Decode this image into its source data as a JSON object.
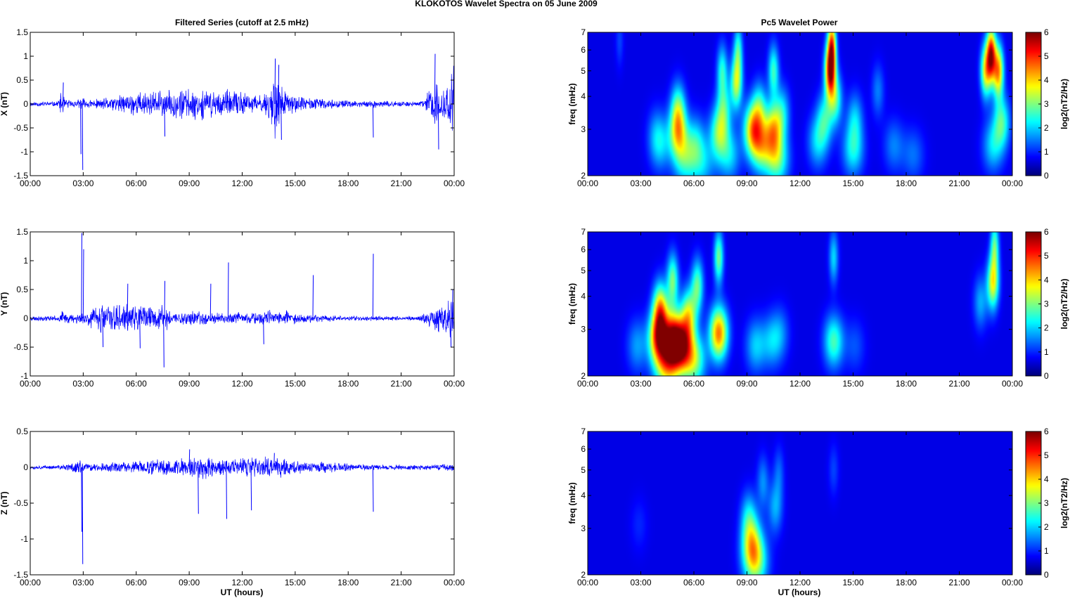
{
  "figure": {
    "title": "KLOKOTOS Wavelet Spectra on 05 June      2009",
    "left_column_title": "Filtered Series (cutoff at 2.5 mHz)",
    "right_column_title": "Pc5 Wavelet Power",
    "xlabel": "UT (hours)"
  },
  "chart_data": [
    {
      "type": "line",
      "component": "X",
      "ylabel": "X (nT)",
      "ylim": [
        -1.5,
        1.5
      ],
      "yticks": [
        "-1.5",
        "-1",
        "-0.5",
        "0",
        "0.5",
        "1",
        "1.5"
      ],
      "xlim": [
        0,
        24
      ],
      "xticks": [
        "00:00",
        "03:00",
        "06:00",
        "09:00",
        "12:00",
        "15:00",
        "18:00",
        "21:00",
        "00:00"
      ],
      "series_color": "#0000ff",
      "envelope": {
        "x": [
          0,
          1.5,
          1.8,
          2,
          2.5,
          2.8,
          2.9,
          3,
          3.5,
          4,
          5,
          6,
          7,
          8,
          8.5,
          9,
          10,
          11,
          12,
          12.5,
          13,
          13.5,
          13.8,
          14,
          14.3,
          14.6,
          15,
          16,
          17,
          18,
          19,
          19.4,
          20,
          21,
          22,
          22.3,
          22.6,
          23,
          23.3,
          23.6,
          24
        ],
        "amp": [
          0.06,
          0.06,
          0.3,
          0.12,
          0.08,
          0.12,
          0.2,
          0.14,
          0.1,
          0.12,
          0.2,
          0.3,
          0.3,
          0.32,
          0.4,
          0.35,
          0.35,
          0.32,
          0.3,
          0.25,
          0.2,
          0.35,
          0.9,
          0.6,
          0.4,
          0.25,
          0.2,
          0.15,
          0.1,
          0.08,
          0.07,
          0.1,
          0.07,
          0.06,
          0.06,
          0.1,
          0.4,
          0.6,
          0.3,
          0.5,
          0.8
        ]
      },
      "spikes": [
        {
          "x": 1.85,
          "y": 0.45
        },
        {
          "x": 2.85,
          "y": -1.05
        },
        {
          "x": 2.95,
          "y": -1.38
        },
        {
          "x": 7.6,
          "y": -0.68
        },
        {
          "x": 13.85,
          "y": 0.95
        },
        {
          "x": 14.05,
          "y": 0.82
        },
        {
          "x": 14.2,
          "y": -0.75
        },
        {
          "x": 19.4,
          "y": -0.7
        },
        {
          "x": 22.9,
          "y": 1.05
        },
        {
          "x": 23.1,
          "y": -0.95
        },
        {
          "x": 23.95,
          "y": 0.8
        }
      ],
      "seed": 11
    },
    {
      "type": "line",
      "component": "Y",
      "ylabel": "Y (nT)",
      "ylim": [
        -1,
        1.5
      ],
      "yticks": [
        "-1",
        "-0.5",
        "0",
        "0.5",
        "1",
        "1.5"
      ],
      "xlim": [
        0,
        24
      ],
      "xticks": [
        "00:00",
        "03:00",
        "06:00",
        "09:00",
        "12:00",
        "15:00",
        "18:00",
        "21:00",
        "00:00"
      ],
      "series_color": "#0000ff",
      "envelope": {
        "x": [
          0,
          1.5,
          1.8,
          2,
          2.5,
          2.8,
          3,
          3.5,
          4,
          4.5,
          5,
          6,
          7,
          7.5,
          8,
          9,
          10,
          11,
          11.5,
          12,
          13,
          14,
          14.5,
          15,
          16,
          17,
          18,
          19,
          20,
          21,
          22,
          22.5,
          23,
          23.5,
          24
        ],
        "amp": [
          0.05,
          0.05,
          0.15,
          0.1,
          0.08,
          0.15,
          0.12,
          0.2,
          0.3,
          0.3,
          0.28,
          0.25,
          0.22,
          0.3,
          0.15,
          0.15,
          0.12,
          0.1,
          0.15,
          0.1,
          0.12,
          0.2,
          0.15,
          0.1,
          0.08,
          0.06,
          0.05,
          0.05,
          0.05,
          0.04,
          0.05,
          0.15,
          0.25,
          0.3,
          0.4
        ]
      },
      "spikes": [
        {
          "x": 2.9,
          "y": 1.48
        },
        {
          "x": 3.0,
          "y": 1.2
        },
        {
          "x": 4.1,
          "y": -0.5
        },
        {
          "x": 5.5,
          "y": 0.6
        },
        {
          "x": 6.2,
          "y": -0.52
        },
        {
          "x": 7.55,
          "y": -0.85
        },
        {
          "x": 7.6,
          "y": 0.65
        },
        {
          "x": 11.2,
          "y": 0.97
        },
        {
          "x": 10.2,
          "y": 0.6
        },
        {
          "x": 13.2,
          "y": -0.45
        },
        {
          "x": 16.0,
          "y": 0.75
        },
        {
          "x": 19.4,
          "y": 1.12
        },
        {
          "x": 23.8,
          "y": -0.5
        },
        {
          "x": 23.9,
          "y": 0.5
        }
      ],
      "seed": 23
    },
    {
      "type": "line",
      "component": "Z",
      "ylabel": "Z (nT)",
      "ylim": [
        -1.5,
        0.5
      ],
      "yticks": [
        "-1.5",
        "-1",
        "-0.5",
        "0",
        "0.5"
      ],
      "xlim": [
        0,
        24
      ],
      "xticks": [
        "00:00",
        "03:00",
        "06:00",
        "09:00",
        "12:00",
        "15:00",
        "18:00",
        "21:00",
        "00:00"
      ],
      "series_color": "#0000ff",
      "envelope": {
        "x": [
          0,
          1.5,
          2,
          2.8,
          3,
          3.5,
          5,
          6,
          7,
          8,
          9,
          9.5,
          10,
          11,
          12,
          13,
          13.5,
          14,
          15,
          16,
          17,
          18,
          19,
          20,
          21,
          22,
          23,
          24
        ],
        "amp": [
          0.03,
          0.03,
          0.05,
          0.12,
          0.08,
          0.06,
          0.08,
          0.1,
          0.12,
          0.14,
          0.16,
          0.2,
          0.18,
          0.15,
          0.15,
          0.16,
          0.18,
          0.18,
          0.12,
          0.1,
          0.08,
          0.06,
          0.05,
          0.04,
          0.04,
          0.04,
          0.05,
          0.06
        ]
      },
      "spikes": [
        {
          "x": 2.95,
          "y": -1.35
        },
        {
          "x": 2.9,
          "y": -0.9
        },
        {
          "x": 9.5,
          "y": -0.65
        },
        {
          "x": 11.1,
          "y": -0.72
        },
        {
          "x": 12.5,
          "y": -0.6
        },
        {
          "x": 19.4,
          "y": -0.62
        },
        {
          "x": 9.0,
          "y": 0.25
        },
        {
          "x": 13.8,
          "y": 0.2
        }
      ],
      "seed": 37
    },
    {
      "type": "heatmap",
      "component": "X",
      "ylabel": "freq (mHz)",
      "yscale": "log",
      "ylim": [
        2,
        7
      ],
      "yticks": [
        "2",
        "3",
        "4",
        "5",
        "6",
        "7"
      ],
      "xlim": [
        0,
        24
      ],
      "xticks": [
        "00:00",
        "03:00",
        "06:00",
        "09:00",
        "12:00",
        "15:00",
        "18:00",
        "21:00",
        "00:00"
      ],
      "colorbar": {
        "label": "log2(nT2/Hz)",
        "ticks": [
          "0",
          "1",
          "2",
          "3",
          "4",
          "5",
          "6"
        ],
        "range": [
          0,
          6
        ],
        "colormap": "jet"
      },
      "blobs": [
        {
          "t": 4.1,
          "f": 2.6,
          "v": 1.2
        },
        {
          "t": 5.1,
          "f": 2.9,
          "v": 3.0
        },
        {
          "t": 5.1,
          "f": 3.6,
          "v": 2.2
        },
        {
          "t": 5.5,
          "f": 2.3,
          "v": 1.8
        },
        {
          "t": 6.1,
          "f": 2.7,
          "v": 1.5
        },
        {
          "t": 6.5,
          "f": 2.2,
          "v": 1.3
        },
        {
          "t": 7.4,
          "f": 2.9,
          "v": 2.4
        },
        {
          "t": 7.7,
          "f": 3.6,
          "v": 1.8
        },
        {
          "t": 7.6,
          "f": 5.0,
          "v": 2.0
        },
        {
          "t": 8.0,
          "f": 2.4,
          "v": 1.6
        },
        {
          "t": 8.4,
          "f": 4.5,
          "v": 3.0
        },
        {
          "t": 8.5,
          "f": 6.0,
          "v": 2.0
        },
        {
          "t": 9.3,
          "f": 3.0,
          "v": 3.4
        },
        {
          "t": 9.8,
          "f": 2.6,
          "v": 2.8
        },
        {
          "t": 9.7,
          "f": 3.6,
          "v": 2.0
        },
        {
          "t": 10.5,
          "f": 3.0,
          "v": 3.2
        },
        {
          "t": 10.7,
          "f": 2.3,
          "v": 2.4
        },
        {
          "t": 10.5,
          "f": 5.0,
          "v": 2.2
        },
        {
          "t": 11.0,
          "f": 3.5,
          "v": 1.5
        },
        {
          "t": 13.0,
          "f": 2.7,
          "v": 1.6
        },
        {
          "t": 13.4,
          "f": 3.3,
          "v": 1.8
        },
        {
          "t": 13.7,
          "f": 5.0,
          "v": 5.2
        },
        {
          "t": 13.8,
          "f": 6.3,
          "v": 4.0
        },
        {
          "t": 14.0,
          "f": 3.9,
          "v": 2.2
        },
        {
          "t": 15.0,
          "f": 2.5,
          "v": 1.8
        },
        {
          "t": 15.1,
          "f": 3.3,
          "v": 1.4
        },
        {
          "t": 16.4,
          "f": 4.2,
          "v": 1.0
        },
        {
          "t": 17.3,
          "f": 2.6,
          "v": 1.0
        },
        {
          "t": 18.4,
          "f": 2.4,
          "v": 0.9
        },
        {
          "t": 22.5,
          "f": 5.0,
          "v": 3.4
        },
        {
          "t": 22.8,
          "f": 5.8,
          "v": 5.0
        },
        {
          "t": 23.2,
          "f": 5.0,
          "v": 4.2
        },
        {
          "t": 23.4,
          "f": 3.2,
          "v": 2.2
        },
        {
          "t": 22.9,
          "f": 2.6,
          "v": 1.6
        },
        {
          "t": 1.8,
          "f": 6.5,
          "v": 0.6
        },
        {
          "t": 3.9,
          "f": 2.9,
          "v": 0.9
        }
      ]
    },
    {
      "type": "heatmap",
      "component": "Y",
      "ylabel": "freq (mHz)",
      "yscale": "log",
      "ylim": [
        2,
        7
      ],
      "yticks": [
        "2",
        "3",
        "4",
        "5",
        "6",
        "7"
      ],
      "xlim": [
        0,
        24
      ],
      "xticks": [
        "00:00",
        "03:00",
        "06:00",
        "09:00",
        "12:00",
        "15:00",
        "18:00",
        "21:00",
        "00:00"
      ],
      "colorbar": {
        "label": "log2(nT2/Hz)",
        "ticks": [
          "0",
          "1",
          "2",
          "3",
          "4",
          "5",
          "6"
        ],
        "range": [
          0,
          6
        ],
        "colormap": "jet"
      },
      "blobs": [
        {
          "t": 2.8,
          "f": 2.6,
          "v": 1.2
        },
        {
          "t": 4.0,
          "f": 2.8,
          "v": 4.6
        },
        {
          "t": 4.1,
          "f": 3.6,
          "v": 3.5
        },
        {
          "t": 4.5,
          "f": 2.2,
          "v": 3.4
        },
        {
          "t": 4.8,
          "f": 2.8,
          "v": 4.2
        },
        {
          "t": 4.8,
          "f": 4.6,
          "v": 2.6
        },
        {
          "t": 5.3,
          "f": 2.6,
          "v": 4.4
        },
        {
          "t": 5.7,
          "f": 3.4,
          "v": 3.0
        },
        {
          "t": 6.0,
          "f": 2.3,
          "v": 2.8
        },
        {
          "t": 6.2,
          "f": 4.4,
          "v": 2.4
        },
        {
          "t": 7.4,
          "f": 2.9,
          "v": 4.4
        },
        {
          "t": 7.4,
          "f": 5.6,
          "v": 2.6
        },
        {
          "t": 9.5,
          "f": 2.6,
          "v": 1.5
        },
        {
          "t": 10.4,
          "f": 2.7,
          "v": 1.3
        },
        {
          "t": 10.9,
          "f": 2.9,
          "v": 0.9
        },
        {
          "t": 13.9,
          "f": 2.7,
          "v": 2.3
        },
        {
          "t": 13.9,
          "f": 5.6,
          "v": 1.6
        },
        {
          "t": 15.1,
          "f": 2.6,
          "v": 0.7
        },
        {
          "t": 22.2,
          "f": 3.8,
          "v": 1.3
        },
        {
          "t": 22.9,
          "f": 4.5,
          "v": 3.4
        },
        {
          "t": 23.0,
          "f": 6.2,
          "v": 2.3
        }
      ]
    },
    {
      "type": "heatmap",
      "component": "Z",
      "ylabel": "freq (mHz)",
      "yscale": "log",
      "ylim": [
        2,
        7
      ],
      "yticks": [
        "2",
        "3",
        "4",
        "5",
        "6",
        "7"
      ],
      "xlim": [
        0,
        24
      ],
      "xticks": [
        "00:00",
        "03:00",
        "06:00",
        "09:00",
        "12:00",
        "15:00",
        "18:00",
        "21:00",
        "00:00"
      ],
      "colorbar": {
        "label": "log2(nT2/Hz)",
        "ticks": [
          "0",
          "1",
          "2",
          "3",
          "4",
          "5",
          "6"
        ],
        "range": [
          0,
          6
        ],
        "colormap": "jet"
      },
      "blobs": [
        {
          "t": 9.3,
          "f": 2.6,
          "v": 2.8
        },
        {
          "t": 9.5,
          "f": 2.2,
          "v": 2.3
        },
        {
          "t": 9.1,
          "f": 3.3,
          "v": 1.6
        },
        {
          "t": 9.9,
          "f": 4.5,
          "v": 1.1
        },
        {
          "t": 10.6,
          "f": 3.6,
          "v": 1.3
        },
        {
          "t": 10.8,
          "f": 4.9,
          "v": 0.8
        },
        {
          "t": 13.9,
          "f": 5.0,
          "v": 0.6
        },
        {
          "t": 2.9,
          "f": 3.1,
          "v": 0.4
        }
      ]
    }
  ]
}
